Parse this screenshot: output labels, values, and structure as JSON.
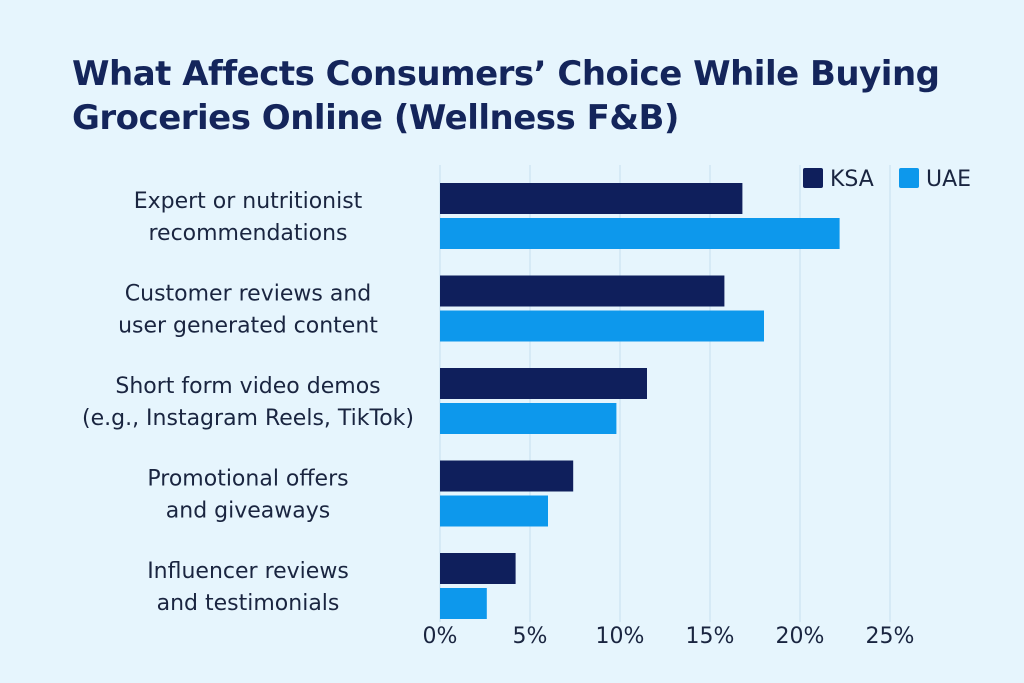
{
  "chart_data": {
    "type": "bar",
    "orientation": "horizontal",
    "title": "What Affects Consumers’ Choice While Buying Groceries Online (Wellness F&B)",
    "categories": [
      [
        "Expert or nutritionist",
        "recommendations"
      ],
      [
        "Customer reviews and",
        "user generated content"
      ],
      [
        "Short form video demos",
        "(e.g., Instagram Reels, TikTok)"
      ],
      [
        "Promotional offers",
        "and giveaways"
      ],
      [
        "Influencer reviews",
        "and testimonials"
      ]
    ],
    "series": [
      {
        "name": "KSA",
        "color": "#0f1f5c",
        "values": [
          16.8,
          15.8,
          11.5,
          7.4,
          4.2
        ]
      },
      {
        "name": "UAE",
        "color": "#0d98ec",
        "values": [
          22.2,
          18.0,
          9.8,
          6.0,
          2.6
        ]
      }
    ],
    "xlim": [
      0,
      25
    ],
    "xticks": [
      0,
      5,
      10,
      15,
      20,
      25
    ],
    "xtick_labels": [
      "0%",
      "5%",
      "10%",
      "15%",
      "20%",
      "25%"
    ],
    "grid": true,
    "legend_position": "top-right",
    "background": "#e6f5fd"
  }
}
